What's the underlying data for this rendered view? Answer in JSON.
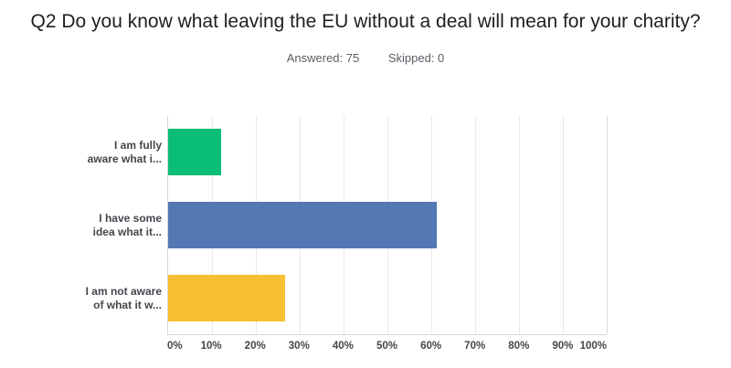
{
  "header": {
    "title": "Q2 Do you know what leaving the EU without a deal will mean for your charity?",
    "answered_label": "Answered: 75",
    "skipped_label": "Skipped: 0"
  },
  "chart_data": {
    "type": "bar",
    "orientation": "horizontal",
    "title": "Q2 Do you know what leaving the EU without a deal will mean for your charity?",
    "categories": [
      "I am fully aware what i...",
      "I have some idea what it...",
      "I am not aware of what it w..."
    ],
    "category_label_lines": [
      [
        "I am fully",
        "aware what i..."
      ],
      [
        "I have some",
        "idea what it..."
      ],
      [
        "I am not aware",
        "of what it w..."
      ]
    ],
    "values": [
      12,
      61.33,
      26.67
    ],
    "unit": "%",
    "bar_colors": [
      "#0bbe78",
      "#5478b4",
      "#f7bf31"
    ],
    "xlim": [
      0,
      100
    ],
    "x_ticks": [
      "0%",
      "10%",
      "20%",
      "30%",
      "40%",
      "50%",
      "60%",
      "70%",
      "80%",
      "90%",
      "100%"
    ],
    "grid": "vertical",
    "legend": "none",
    "axis_text_color": "#43464c",
    "gridline_color": "#e9e9e9"
  }
}
